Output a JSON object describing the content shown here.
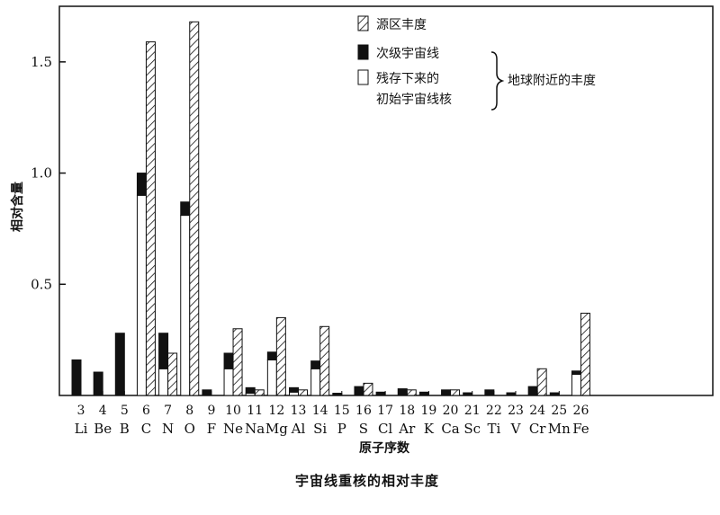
{
  "chart_data": {
    "type": "bar",
    "caption": "宇宙线重核的相对丰度",
    "xlabel": "原子序数",
    "ylabel": "相对含量",
    "ylim": [
      0,
      1.75
    ],
    "yticks": [
      {
        "value": 0.5,
        "label": "0.5"
      },
      {
        "value": 1.0,
        "label": "1.0"
      },
      {
        "value": 1.5,
        "label": "1.5"
      }
    ],
    "categories": [
      {
        "z": "3",
        "symbol": "Li"
      },
      {
        "z": "4",
        "symbol": "Be"
      },
      {
        "z": "5",
        "symbol": "B"
      },
      {
        "z": "6",
        "symbol": "C"
      },
      {
        "z": "7",
        "symbol": "N"
      },
      {
        "z": "8",
        "symbol": "O"
      },
      {
        "z": "9",
        "symbol": "F"
      },
      {
        "z": "10",
        "symbol": "Ne"
      },
      {
        "z": "11",
        "symbol": "Na"
      },
      {
        "z": "12",
        "symbol": "Mg"
      },
      {
        "z": "13",
        "symbol": "Al"
      },
      {
        "z": "14",
        "symbol": "Si"
      },
      {
        "z": "15",
        "symbol": "P"
      },
      {
        "z": "16",
        "symbol": "S"
      },
      {
        "z": "17",
        "symbol": "Cl"
      },
      {
        "z": "18",
        "symbol": "Ar"
      },
      {
        "z": "19",
        "symbol": "K"
      },
      {
        "z": "20",
        "symbol": "Ca"
      },
      {
        "z": "21",
        "symbol": "Sc"
      },
      {
        "z": "22",
        "symbol": "Ti"
      },
      {
        "z": "23",
        "symbol": "V"
      },
      {
        "z": "24",
        "symbol": "Cr"
      },
      {
        "z": "25",
        "symbol": "Mn"
      },
      {
        "z": "26",
        "symbol": "Fe"
      }
    ],
    "series": [
      {
        "name": "源区丰度",
        "style": "hatched",
        "values": [
          0,
          0,
          0,
          1.59,
          0.19,
          1.68,
          0,
          0.3,
          0.025,
          0.35,
          0.025,
          0.31,
          0,
          0.055,
          0,
          0.025,
          0,
          0.025,
          0,
          0,
          0,
          0.12,
          0,
          0.37
        ]
      },
      {
        "name": "次级宇宙线",
        "style": "solid",
        "values": [
          0.16,
          0.105,
          0.28,
          0.1,
          0.16,
          0.06,
          0.025,
          0.07,
          0.025,
          0.035,
          0.02,
          0.035,
          0.01,
          0.04,
          0.015,
          0.03,
          0.015,
          0.025,
          0.012,
          0.025,
          0.012,
          0.04,
          0.012,
          0.015
        ]
      },
      {
        "name": "残存下来的初始宇宙线核",
        "style": "open",
        "values": [
          0,
          0,
          0,
          0.9,
          0.12,
          0.81,
          0,
          0.12,
          0.01,
          0.16,
          0.015,
          0.12,
          0,
          0,
          0,
          0,
          0,
          0,
          0,
          0,
          0,
          0,
          0,
          0.095
        ]
      }
    ],
    "legend": {
      "position": "top-center",
      "items": [
        {
          "label": "源区丰度",
          "style": "hatched"
        },
        {
          "label": "次级宇宙线",
          "style": "solid"
        },
        {
          "label": "残存下来的",
          "style": "open"
        },
        {
          "label": "初始宇宙线核",
          "style": "none"
        }
      ],
      "brace_label": "地球附近的丰度"
    },
    "grid": false
  }
}
